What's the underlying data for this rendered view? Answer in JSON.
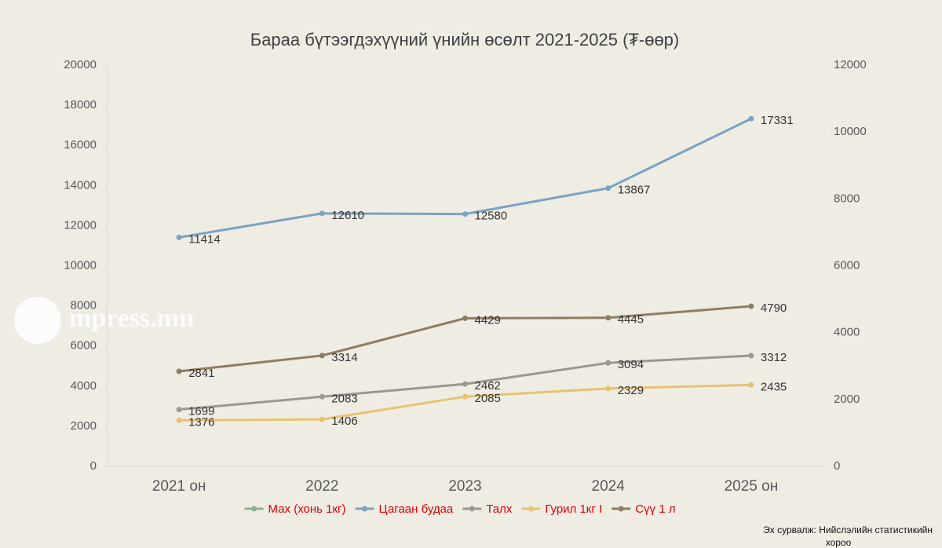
{
  "chart_data": {
    "type": "line",
    "title": "Бараа бүтээгдэхүүний үнийн өсөлт 2021-2025 (₮-өөр)",
    "categories": [
      "2021 он",
      "2022",
      "2023",
      "2024",
      "2025 он"
    ],
    "series": [
      {
        "name": "Мах (хонь 1кг)",
        "color": "#8fb08a",
        "values": [
          null,
          null,
          null,
          null,
          null
        ]
      },
      {
        "name": "Цагаан будаа",
        "color": "#7ba3c2",
        "values": [
          11414,
          12610,
          12580,
          13867,
          17331
        ]
      },
      {
        "name": "Талх",
        "color": "#9a9890",
        "values": [
          1699,
          2083,
          2462,
          3094,
          3312
        ],
        "axis": "y2"
      },
      {
        "name": "Гурил 1кг I",
        "color": "#e8c271",
        "values": [
          1376,
          1406,
          2085,
          2329,
          2435
        ],
        "axis": "y2"
      },
      {
        "name": "Сүү 1 л",
        "color": "#8e7e62",
        "values": [
          2841,
          3314,
          4429,
          4445,
          4790
        ],
        "axis": "y2"
      }
    ],
    "ylim": [
      0,
      20000
    ],
    "yticks": [
      0,
      2000,
      4000,
      6000,
      8000,
      10000,
      12000,
      14000,
      16000,
      18000,
      20000
    ],
    "y2lim": [
      0,
      12000
    ],
    "y2ticks": [
      0,
      2000,
      4000,
      6000,
      8000,
      10000,
      12000
    ],
    "legend": "bottom",
    "data_labels": true
  },
  "watermark": "mpress.mn",
  "source": [
    "Эх сурвалж: Нийслэлийн статистикийн",
    "хороо"
  ]
}
